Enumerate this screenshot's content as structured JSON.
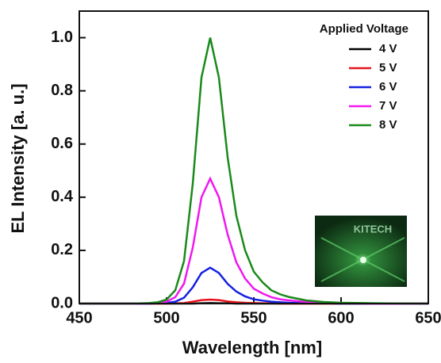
{
  "chart_data": {
    "type": "line",
    "x_label": "Wavelength [nm]",
    "y_label": "EL Intensity [a. u.]",
    "legend_title": "Applied Voltage",
    "legend_position": "upper right",
    "inset_label": "KITECH",
    "x": [
      450,
      480,
      490,
      495,
      500,
      505,
      510,
      515,
      520,
      525,
      530,
      535,
      540,
      545,
      550,
      555,
      560,
      565,
      570,
      580,
      590,
      600,
      620,
      650
    ],
    "series": [
      {
        "name": "4 V",
        "color": "#000000",
        "values": [
          0,
          0,
          0,
          0,
          0,
          0,
          0,
          0,
          0.001,
          0.002,
          0.001,
          0.001,
          0,
          0,
          0,
          0,
          0,
          0,
          0,
          0,
          0,
          0,
          0,
          0
        ]
      },
      {
        "name": "5 V",
        "color": "#e8141b",
        "values": [
          0,
          0,
          0,
          0,
          0,
          0.001,
          0.002,
          0.007,
          0.013,
          0.015,
          0.013,
          0.008,
          0.005,
          0.003,
          0.002,
          0.001,
          0.001,
          0,
          0,
          0,
          0,
          0,
          0,
          0
        ]
      },
      {
        "name": "6 V",
        "color": "#1420e0",
        "values": [
          0,
          0,
          0,
          0.001,
          0.002,
          0.007,
          0.022,
          0.061,
          0.115,
          0.135,
          0.115,
          0.074,
          0.045,
          0.027,
          0.016,
          0.011,
          0.007,
          0.005,
          0.003,
          0.002,
          0.001,
          0,
          0,
          0
        ]
      },
      {
        "name": "7 V",
        "color": "#f018f0",
        "values": [
          0,
          0,
          0.001,
          0.002,
          0.007,
          0.024,
          0.075,
          0.21,
          0.4,
          0.47,
          0.4,
          0.26,
          0.155,
          0.094,
          0.056,
          0.038,
          0.024,
          0.016,
          0.012,
          0.006,
          0.003,
          0.001,
          0,
          0
        ]
      },
      {
        "name": "8 V",
        "color": "#1a8a1a",
        "values": [
          0,
          0,
          0.002,
          0.005,
          0.015,
          0.05,
          0.16,
          0.45,
          0.85,
          1.0,
          0.85,
          0.55,
          0.33,
          0.2,
          0.12,
          0.08,
          0.05,
          0.035,
          0.025,
          0.012,
          0.006,
          0.003,
          0.001,
          0
        ]
      }
    ],
    "xlim": [
      450,
      650
    ],
    "ylim": [
      0,
      1.1
    ],
    "xticks": [
      450,
      500,
      550,
      600,
      650
    ],
    "yticks": [
      {
        "value": 0,
        "label": "0.0"
      },
      0.2,
      0.4,
      0.6,
      0.8,
      {
        "value": 1,
        "label": "1.0"
      }
    ]
  }
}
